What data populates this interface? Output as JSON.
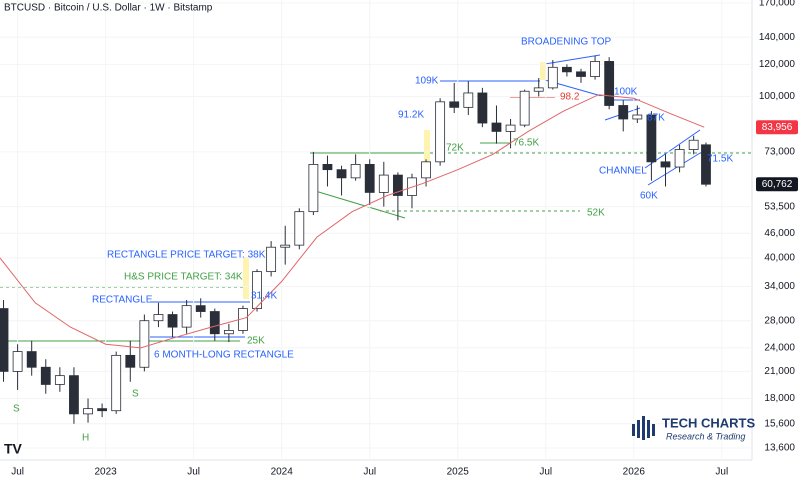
{
  "chart_data": {
    "type": "candlestick",
    "title": "BTCUSD · Bitcoin / U.S. Dollar · 1W · Bitstamp",
    "log_scale": true,
    "up_color": "#ffffff",
    "down_color": "#2a2e39",
    "x": [
      2022.42,
      2022.5,
      2022.58,
      2022.66,
      2022.74,
      2022.82,
      2022.9,
      2022.98,
      2023.06,
      2023.14,
      2023.22,
      2023.3,
      2023.38,
      2023.46,
      2023.54,
      2023.62,
      2023.7,
      2023.78,
      2023.86,
      2023.94,
      2024.02,
      2024.1,
      2024.18,
      2024.26,
      2024.34,
      2024.42,
      2024.5,
      2024.58,
      2024.66,
      2024.74,
      2024.82,
      2024.9,
      2024.98,
      2025.06,
      2025.14,
      2025.22,
      2025.3,
      2025.38,
      2025.46,
      2025.54,
      2025.62,
      2025.7,
      2025.78,
      2025.86,
      2025.94,
      2026.02,
      2026.1,
      2026.18,
      2026.26,
      2026.34,
      2026.41
    ],
    "ohlc": [
      [
        30000,
        31500,
        19800,
        21000
      ],
      [
        21000,
        24500,
        18900,
        23500
      ],
      [
        23500,
        25000,
        20500,
        21500
      ],
      [
        21500,
        22500,
        18500,
        19500
      ],
      [
        19500,
        21500,
        18700,
        20500
      ],
      [
        20500,
        21500,
        15600,
        16500
      ],
      [
        16500,
        18000,
        15700,
        17000
      ],
      [
        17000,
        17500,
        16200,
        16800
      ],
      [
        16800,
        23500,
        16500,
        23000
      ],
      [
        23000,
        25000,
        19800,
        21500
      ],
      [
        21500,
        29000,
        21000,
        28000
      ],
      [
        28000,
        31000,
        27000,
        29000
      ],
      [
        29000,
        29500,
        25500,
        27000
      ],
      [
        27000,
        31500,
        26000,
        30500
      ],
      [
        30500,
        31800,
        28500,
        29500
      ],
      [
        29500,
        30000,
        25000,
        26000
      ],
      [
        26000,
        27500,
        24800,
        26500
      ],
      [
        26500,
        30500,
        26000,
        30000
      ],
      [
        30000,
        37500,
        29500,
        37000
      ],
      [
        37000,
        44000,
        36000,
        42500
      ],
      [
        42500,
        48000,
        38500,
        43000
      ],
      [
        43000,
        53000,
        42000,
        52000
      ],
      [
        52000,
        73000,
        51000,
        68000
      ],
      [
        68000,
        71500,
        60000,
        66000
      ],
      [
        66000,
        67500,
        57000,
        63000
      ],
      [
        63000,
        72000,
        62000,
        68000
      ],
      [
        68000,
        70000,
        54000,
        58000
      ],
      [
        58000,
        69000,
        53500,
        64000
      ],
      [
        64000,
        65000,
        49500,
        57000
      ],
      [
        57000,
        64500,
        53000,
        63000
      ],
      [
        63000,
        70000,
        60000,
        69000
      ],
      [
        69000,
        99000,
        67500,
        97000
      ],
      [
        97000,
        108000,
        91000,
        94000
      ],
      [
        94000,
        109000,
        90000,
        102000
      ],
      [
        102000,
        105000,
        84000,
        86000
      ],
      [
        86000,
        95000,
        76500,
        82000
      ],
      [
        82000,
        88000,
        74500,
        85000
      ],
      [
        85000,
        104000,
        84000,
        103000
      ],
      [
        103000,
        111000,
        100000,
        105000
      ],
      [
        105000,
        123000,
        104000,
        118000
      ],
      [
        118000,
        120000,
        112000,
        115000
      ],
      [
        115000,
        117000,
        108000,
        112000
      ],
      [
        112000,
        126000,
        110000,
        122000
      ],
      [
        122000,
        125000,
        93000,
        95000
      ],
      [
        95000,
        98000,
        82000,
        88000
      ],
      [
        88000,
        95000,
        86000,
        90000
      ],
      [
        90000,
        92000,
        62000,
        69000
      ],
      [
        69000,
        72000,
        60000,
        67000
      ],
      [
        67000,
        76000,
        65000,
        74000
      ],
      [
        74000,
        80000,
        72000,
        78000
      ],
      [
        76000,
        77000,
        60000,
        60762
      ]
    ],
    "ma": {
      "color": "#e06666",
      "x": [
        2022.4,
        2022.6,
        2022.8,
        2023.0,
        2023.2,
        2023.4,
        2023.6,
        2023.8,
        2024.0,
        2024.2,
        2024.4,
        2024.6,
        2024.8,
        2025.0,
        2025.2,
        2025.4,
        2025.6,
        2025.8,
        2026.0,
        2026.2,
        2026.4
      ],
      "values": [
        40000,
        31000,
        27000,
        24500,
        24000,
        25500,
        27000,
        28500,
        35000,
        45000,
        52000,
        57000,
        61000,
        66000,
        72000,
        82000,
        92000,
        101000,
        99000,
        91000,
        84000
      ]
    },
    "price_markers": [
      {
        "value": 83956,
        "label": "83,956",
        "color": "#f23645"
      },
      {
        "value": 60762,
        "label": "60,762",
        "color": "#131722"
      }
    ],
    "xlim": [
      2022.4,
      2026.66
    ],
    "xticks": [
      {
        "value": 2022.5,
        "label": "Jul"
      },
      2023,
      {
        "value": 2023.5,
        "label": "Jul"
      },
      2024,
      {
        "value": 2024.5,
        "label": "Jul"
      },
      2025,
      {
        "value": 2025.5,
        "label": "Jul"
      },
      2026,
      {
        "value": 2026.5,
        "label": "Jul"
      }
    ],
    "ylim": [
      12700,
      172900
    ],
    "yticks": [
      {
        "value": 170000,
        "label": "170,000"
      },
      {
        "value": 140000,
        "label": "140,000"
      },
      {
        "value": 120000,
        "label": "120,000"
      },
      {
        "value": 100000,
        "label": "100,000"
      },
      {
        "value": 73000,
        "label": "73,000"
      },
      {
        "value": 53500,
        "label": "53,500"
      },
      {
        "value": 46000,
        "label": "46,000"
      },
      {
        "value": 40000,
        "label": "40,000"
      },
      {
        "value": 34000,
        "label": "34,000"
      },
      {
        "value": 28000,
        "label": "28,000"
      },
      {
        "value": 24000,
        "label": "24,000"
      },
      {
        "value": 21000,
        "label": "21,000"
      },
      {
        "value": 18000,
        "label": "18,000"
      },
      {
        "value": 15600,
        "label": "15,600"
      },
      {
        "value": 13600,
        "label": "13,600"
      }
    ],
    "annotations": [
      "BROADENING TOP",
      "109K",
      "100K",
      "98.2",
      "91.2K",
      "87K",
      "72K",
      "76.5K",
      "CHANNEL",
      "71.5K",
      "60K",
      "52K",
      "RECTANGLE PRICE TARGET: 38K",
      "H&S PRICE TARGET: 34K",
      "RECTANGLE",
      "31.4K",
      "25K",
      "6 MONTH-LONG RECTANGLE",
      "S",
      "S",
      "H"
    ],
    "logo": {
      "name": "TECH CHARTS",
      "tagline": "Research & Trading"
    }
  }
}
